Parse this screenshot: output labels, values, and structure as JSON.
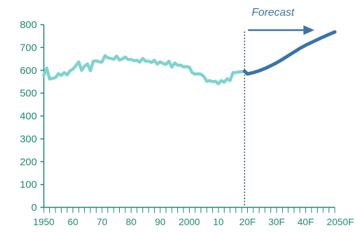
{
  "chart_data": {
    "type": "line",
    "title": "",
    "xlabel": "",
    "ylabel": "",
    "ylim": [
      0,
      800
    ],
    "yticks": [
      0,
      100,
      200,
      300,
      400,
      500,
      600,
      700,
      800
    ],
    "xlim": [
      1950,
      2050
    ],
    "xtick_values": [
      1950,
      1960,
      1970,
      1980,
      1990,
      2000,
      2010,
      2020,
      2030,
      2040,
      2050
    ],
    "xtick_labels": [
      "1950",
      "60",
      "70",
      "80",
      "90",
      "2000",
      "10",
      "20F",
      "30F",
      "40F",
      "2050F"
    ],
    "grid": false,
    "annotation": {
      "text": "Forecast",
      "divider_x": 2019,
      "arrow_from_x": 2019,
      "arrow_to_x": 2043
    },
    "colors": {
      "history": "#7fd3cd",
      "forecast": "#3a73a8",
      "axis": "#1f8a70",
      "divider": "#1f6b5a",
      "annotation": "#3a73a8"
    },
    "series": [
      {
        "key": "history",
        "x": [
          1950,
          1951,
          1952,
          1953,
          1954,
          1955,
          1956,
          1957,
          1958,
          1959,
          1960,
          1961,
          1962,
          1963,
          1964,
          1965,
          1966,
          1967,
          1968,
          1969,
          1970,
          1971,
          1972,
          1973,
          1974,
          1975,
          1976,
          1977,
          1978,
          1979,
          1980,
          1981,
          1982,
          1983,
          1984,
          1985,
          1986,
          1987,
          1988,
          1989,
          1990,
          1991,
          1992,
          1993,
          1994,
          1995,
          1996,
          1997,
          1998,
          1999,
          2000,
          2001,
          2002,
          2003,
          2004,
          2005,
          2006,
          2007,
          2008,
          2009,
          2010,
          2011,
          2012,
          2013,
          2014,
          2015,
          2016,
          2017,
          2018,
          2019
        ],
        "values": [
          578,
          610,
          562,
          565,
          568,
          585,
          578,
          590,
          580,
          598,
          605,
          620,
          637,
          600,
          618,
          628,
          598,
          640,
          642,
          637,
          636,
          664,
          655,
          652,
          648,
          662,
          645,
          650,
          658,
          647,
          648,
          642,
          644,
          636,
          652,
          640,
          640,
          634,
          644,
          627,
          637,
          630,
          626,
          640,
          614,
          632,
          622,
          623,
          615,
          616,
          614,
          590,
          583,
          585,
          583,
          573,
          552,
          555,
          550,
          552,
          541,
          555,
          548,
          563,
          555,
          589,
          590,
          593,
          594,
          596
        ]
      },
      {
        "key": "forecast",
        "x": [
          2019,
          2020,
          2022,
          2024,
          2026,
          2028,
          2030,
          2032,
          2034,
          2036,
          2038,
          2040,
          2042,
          2044,
          2046,
          2048,
          2050
        ],
        "values": [
          596,
          584,
          590,
          598,
          608,
          620,
          633,
          648,
          664,
          680,
          696,
          710,
          722,
          734,
          746,
          757,
          768
        ]
      }
    ]
  }
}
